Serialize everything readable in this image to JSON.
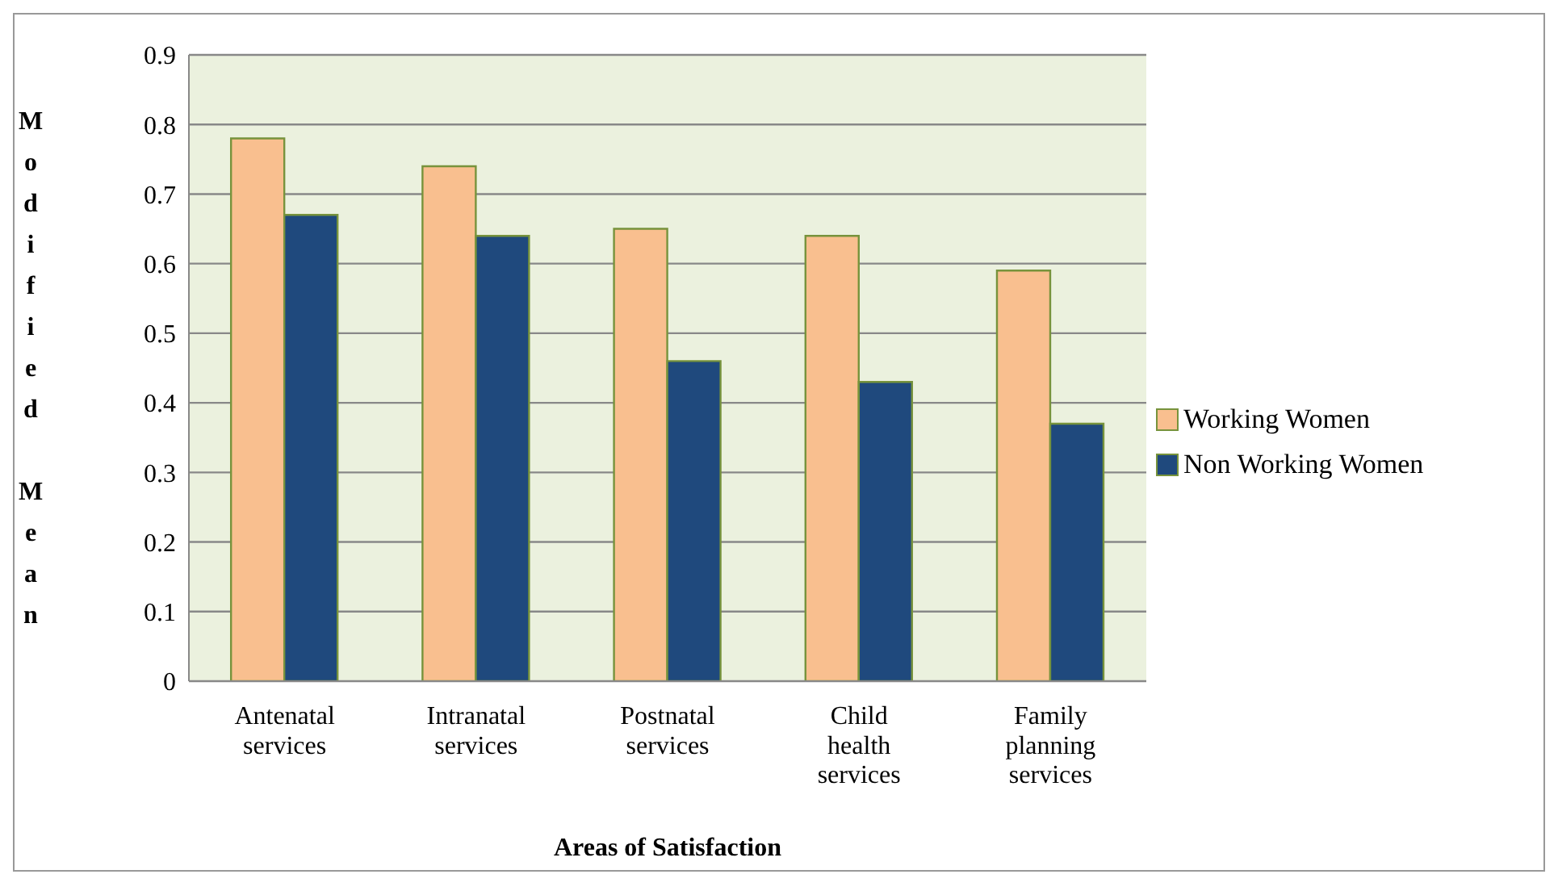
{
  "chart_data": {
    "type": "bar",
    "xlabel": "Areas of Satisfaction",
    "ylabel": "Modified Mean",
    "categories": [
      "Antenatal services",
      "Intranatal services",
      "Postnatal services",
      "Child health services",
      "Family planning services"
    ],
    "series": [
      {
        "name": "Working Women",
        "color": "#f9bf8f",
        "values": [
          0.78,
          0.74,
          0.65,
          0.64,
          0.59
        ]
      },
      {
        "name": "Non Working Women",
        "color": "#1f497d",
        "values": [
          0.67,
          0.64,
          0.46,
          0.43,
          0.37
        ]
      }
    ],
    "ylim": [
      0,
      0.9
    ],
    "yticks": [
      0,
      0.1,
      0.2,
      0.3,
      0.4,
      0.5,
      0.6,
      0.7,
      0.8,
      0.9
    ],
    "grid": "y",
    "legend": "right"
  }
}
